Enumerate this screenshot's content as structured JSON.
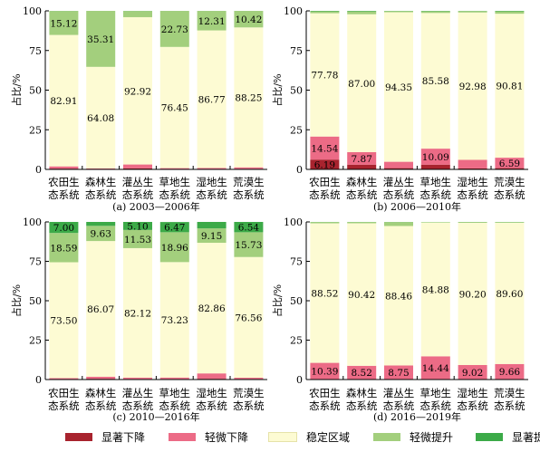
{
  "categories": [
    "农田生\n态系统",
    "森林生\n态系统",
    "灌丛生\n态系统",
    "草地生\n态系统",
    "湿地生\n态系统",
    "荒漠生\n态系统"
  ],
  "ylabel": "占比/%",
  "yticks": [
    0,
    25,
    50,
    75,
    100
  ],
  "legend": [
    {
      "name": "显著下降",
      "color": "#a8232e"
    },
    {
      "name": "轻微下降",
      "color": "#ec6b86"
    },
    {
      "name": "稳定区域",
      "color": "#fdfbd3"
    },
    {
      "name": "轻微提升",
      "color": "#a3cf7d"
    },
    {
      "name": "显著提升",
      "color": "#3caa48"
    }
  ],
  "chart_data": [
    {
      "type": "bar",
      "stacked": true,
      "subtitle": "(a) 2003—2006年",
      "categories": [
        "农田生态系统",
        "森林生态系统",
        "灌丛生态系统",
        "草地生态系统",
        "湿地生态系统",
        "荒漠生态系统"
      ],
      "ylabel": "占比/%",
      "ylim": [
        0,
        100
      ],
      "series": [
        {
          "name": "显著下降",
          "values": [
            0.5,
            0.3,
            0.6,
            0.3,
            0.3,
            0.4
          ],
          "labels": [
            "",
            "",
            "",
            "",
            "",
            ""
          ]
        },
        {
          "name": "轻微下降",
          "values": [
            1.4,
            0.3,
            2.5,
            0.5,
            0.6,
            0.9
          ],
          "labels": [
            "",
            "",
            "",
            "",
            "",
            ""
          ]
        },
        {
          "name": "稳定区域",
          "values": [
            82.91,
            64.08,
            92.92,
            76.45,
            86.77,
            88.25
          ],
          "labels": [
            "82.91",
            "64.08",
            "92.92",
            "76.45",
            "86.77",
            "88.25"
          ]
        },
        {
          "name": "轻微提升",
          "values": [
            15.12,
            35.31,
            3.9,
            22.73,
            12.31,
            10.42
          ],
          "labels": [
            "15.12",
            "35.31",
            "",
            "22.73",
            "12.31",
            "10.42"
          ]
        },
        {
          "name": "显著提升",
          "values": [
            0.07,
            0.01,
            0.08,
            0.02,
            0.02,
            0.03
          ],
          "labels": [
            "",
            "",
            "",
            "",
            "",
            ""
          ]
        }
      ]
    },
    {
      "type": "bar",
      "stacked": true,
      "subtitle": "(b) 2006—2010年",
      "categories": [
        "农田生态系统",
        "森林生态系统",
        "灌丛生态系统",
        "草地生态系统",
        "湿地生态系统",
        "荒漠生态系统"
      ],
      "ylabel": "占比/%",
      "ylim": [
        0,
        100
      ],
      "series": [
        {
          "name": "显著下降",
          "values": [
            6.19,
            3.0,
            0.8,
            3.0,
            0.6,
            0.8
          ],
          "labels": [
            "6.19",
            "",
            "",
            "",
            "",
            ""
          ]
        },
        {
          "name": "轻微下降",
          "values": [
            14.54,
            7.87,
            4.0,
            10.09,
            5.4,
            6.59
          ],
          "labels": [
            "14.54",
            "7.87",
            "",
            "10.09",
            "",
            "6.59"
          ]
        },
        {
          "name": "稳定区域",
          "values": [
            77.78,
            87.0,
            94.35,
            85.58,
            92.98,
            90.81
          ],
          "labels": [
            "77.78",
            "87.00",
            "94.35",
            "85.58",
            "92.98",
            "90.81"
          ]
        },
        {
          "name": "轻微提升",
          "values": [
            1.2,
            1.8,
            0.7,
            1.1,
            0.9,
            1.5
          ],
          "labels": [
            "",
            "",
            "",
            "",
            "",
            ""
          ]
        },
        {
          "name": "显著提升",
          "values": [
            0.29,
            0.33,
            0.15,
            0.23,
            0.12,
            0.3
          ],
          "labels": [
            "",
            "",
            "",
            "",
            "",
            ""
          ]
        }
      ]
    },
    {
      "type": "bar",
      "stacked": true,
      "subtitle": "(c) 2010—2016年",
      "categories": [
        "农田生态系统",
        "森林生态系统",
        "灌丛生态系统",
        "草地生态系统",
        "湿地生态系统",
        "荒漠生态系统"
      ],
      "ylabel": "占比/%",
      "ylim": [
        0,
        100
      ],
      "series": [
        {
          "name": "显著下降",
          "values": [
            0.3,
            0.5,
            0.4,
            0.4,
            0.5,
            0.4
          ],
          "labels": [
            "",
            "",
            "",
            "",
            "",
            ""
          ]
        },
        {
          "name": "轻微下降",
          "values": [
            0.61,
            1.3,
            0.85,
            0.88,
            3.4,
            0.77
          ],
          "labels": [
            "",
            "",
            "",
            "",
            "",
            ""
          ]
        },
        {
          "name": "稳定区域",
          "values": [
            73.5,
            86.07,
            82.12,
            73.23,
            82.86,
            76.56
          ],
          "labels": [
            "73.50",
            "86.07",
            "82.12",
            "73.23",
            "82.86",
            "76.56"
          ]
        },
        {
          "name": "轻微提升",
          "values": [
            18.59,
            9.63,
            11.53,
            18.96,
            9.15,
            15.73
          ],
          "labels": [
            "18.59",
            "9.63",
            "11.53",
            "18.96",
            "9.15",
            "15.73"
          ]
        },
        {
          "name": "显著提升",
          "values": [
            7.0,
            2.5,
            5.1,
            6.47,
            4.09,
            6.54
          ],
          "labels": [
            "7.00",
            "",
            "5.10",
            "6.47",
            "",
            "6.54"
          ]
        }
      ]
    },
    {
      "type": "bar",
      "stacked": true,
      "subtitle": "(d) 2016—2019年",
      "categories": [
        "农田生态系统",
        "森林生态系统",
        "灌丛生态系统",
        "草地生态系统",
        "湿地生态系统",
        "荒漠生态系统"
      ],
      "ylabel": "占比/%",
      "ylim": [
        0,
        100
      ],
      "series": [
        {
          "name": "显著下降",
          "values": [
            0.2,
            0.2,
            0.2,
            0.3,
            0.2,
            0.2
          ],
          "labels": [
            "",
            "",
            "",
            "",
            "",
            ""
          ]
        },
        {
          "name": "轻微下降",
          "values": [
            10.39,
            8.52,
            8.75,
            14.44,
            9.02,
            9.66
          ],
          "labels": [
            "10.39",
            "8.52",
            "8.75",
            "14.44",
            "9.02",
            "9.66"
          ]
        },
        {
          "name": "稳定区域",
          "values": [
            88.52,
            90.42,
            88.46,
            84.88,
            90.2,
            89.6
          ],
          "labels": [
            "88.52",
            "90.42",
            "88.46",
            "84.88",
            "90.20",
            "89.60"
          ]
        },
        {
          "name": "轻微提升",
          "values": [
            0.8,
            0.76,
            2.5,
            0.3,
            0.5,
            0.46
          ],
          "labels": [
            "",
            "",
            "",
            "",
            "",
            ""
          ]
        },
        {
          "name": "显著提升",
          "values": [
            0.09,
            0.1,
            0.09,
            0.08,
            0.08,
            0.08
          ],
          "labels": [
            "",
            "",
            "",
            "",
            "",
            ""
          ]
        }
      ]
    }
  ]
}
